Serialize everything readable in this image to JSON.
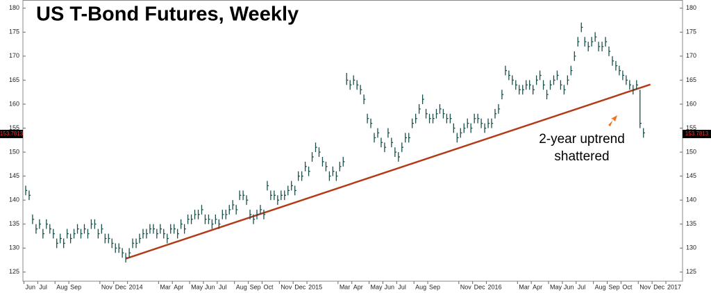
{
  "chart_data": {
    "type": "hlc",
    "title": "US T-Bond Futures, Weekly",
    "categories": [
      "Jun",
      null,
      null,
      null,
      "Jul",
      null,
      null,
      null,
      null,
      "Aug",
      null,
      null,
      null,
      "Sep",
      null,
      null,
      null,
      null,
      null,
      null,
      null,
      null,
      "Nov",
      null,
      null,
      null,
      "Dec",
      null,
      null,
      null,
      "2014",
      null,
      null,
      null,
      null,
      null,
      null,
      null,
      null,
      "Mar",
      null,
      null,
      null,
      "Apr",
      null,
      null,
      null,
      null,
      "May",
      null,
      null,
      null,
      "Jun",
      null,
      null,
      null,
      "Jul",
      null,
      null,
      null,
      null,
      "Aug",
      null,
      null,
      null,
      "Sep",
      null,
      null,
      null,
      "Oct",
      null,
      null,
      null,
      null,
      "Nov",
      null,
      null,
      null,
      "Dec",
      null,
      null,
      null,
      "2015",
      null,
      null,
      null,
      null,
      null,
      null,
      null,
      null,
      "Mar",
      null,
      null,
      null,
      "Apr",
      null,
      null,
      null,
      null,
      "May",
      null,
      null,
      null,
      "Jun",
      null,
      null,
      null,
      "Jul",
      null,
      null,
      null,
      null,
      "Aug",
      null,
      null,
      null,
      "Sep",
      null,
      null,
      null,
      null,
      null,
      null,
      null,
      null,
      "Nov",
      null,
      null,
      null,
      "Dec",
      null,
      null,
      null,
      "2016",
      null,
      null,
      null,
      null,
      null,
      null,
      null,
      null,
      "Mar",
      null,
      null,
      null,
      "Apr",
      null,
      null,
      null,
      null,
      "May",
      null,
      null,
      null,
      "Jun",
      null,
      null,
      null,
      "Jul",
      null,
      null,
      null,
      null,
      "Aug",
      null,
      null,
      null,
      "Sep",
      null,
      null,
      null,
      "Oct",
      null,
      null,
      null,
      null,
      "Nov",
      null,
      null,
      null,
      "Dec",
      null,
      null,
      null,
      "2017"
    ],
    "high": [
      143,
      142,
      137,
      135,
      136,
      134,
      136,
      135,
      134,
      132,
      133,
      132,
      134,
      133,
      134,
      135,
      134,
      135,
      134,
      136,
      136,
      134,
      135,
      133,
      133,
      132,
      131,
      131,
      130,
      129,
      130,
      132,
      132,
      133,
      134,
      134,
      135,
      135,
      134,
      135,
      134,
      133,
      135,
      135,
      134,
      136,
      135,
      137,
      137,
      138,
      138,
      139,
      137,
      137,
      136,
      137,
      136,
      138,
      138,
      139,
      140,
      139,
      142,
      142,
      141,
      138,
      137,
      138,
      139,
      138,
      144,
      142,
      142,
      141,
      142,
      142,
      143,
      144,
      143,
      146,
      146,
      148,
      147,
      150,
      152,
      151,
      149,
      148,
      146,
      147,
      146,
      148,
      149,
      166.5,
      165,
      166,
      165,
      164,
      162,
      158,
      157,
      154,
      155,
      153,
      152,
      155,
      153,
      151,
      150,
      152,
      154,
      154,
      157,
      158,
      160,
      162,
      159,
      158,
      158,
      159,
      160,
      159,
      158,
      158,
      156,
      154,
      155,
      156,
      157,
      156,
      158,
      158,
      157,
      156,
      157,
      157,
      159,
      160,
      163,
      168,
      167,
      166,
      165,
      164,
      164,
      165,
      165,
      164,
      166,
      167,
      165,
      163,
      165,
      166,
      167,
      165,
      164,
      166,
      168,
      171,
      174,
      177,
      174,
      173,
      174,
      175,
      173,
      173,
      174,
      172,
      170,
      169,
      168,
      167,
      166,
      165,
      164,
      165,
      163,
      155,
      null,
      null,
      null,
      null,
      null,
      null,
      null
    ],
    "low": [
      141,
      140,
      135,
      133,
      134,
      132,
      134,
      133,
      132,
      130,
      131,
      130,
      132,
      131,
      132,
      133,
      132,
      133,
      132,
      134,
      134,
      132,
      133,
      131,
      131,
      130,
      129,
      129,
      128,
      127,
      128,
      130,
      130,
      131,
      132,
      132,
      133,
      133,
      132,
      133,
      132,
      131,
      133,
      133,
      132,
      134,
      133,
      135,
      135,
      136,
      136,
      137,
      135,
      135,
      134,
      135,
      134,
      136,
      136,
      137,
      138,
      137,
      140,
      140,
      139,
      136,
      135,
      136,
      137,
      136,
      142,
      140,
      140,
      139,
      140,
      140,
      141,
      142,
      141,
      144,
      144,
      146,
      145,
      148,
      150,
      149,
      147,
      146,
      144,
      145,
      144,
      146,
      147,
      164,
      163,
      164,
      163,
      162,
      160,
      156,
      155,
      152,
      153,
      151,
      150,
      153,
      151,
      149,
      148,
      150,
      152,
      152,
      155,
      156,
      158,
      160,
      157,
      156,
      156,
      157,
      158,
      157,
      156,
      156,
      154,
      152,
      153,
      154,
      155,
      154,
      156,
      156,
      155,
      154,
      155,
      155,
      157,
      158,
      161,
      166,
      165,
      164,
      163,
      162,
      162,
      163,
      163,
      162,
      164,
      165,
      163,
      161,
      163,
      164,
      165,
      163,
      162,
      164,
      166,
      169,
      172,
      175,
      172,
      171,
      172,
      173,
      171,
      171,
      172,
      170,
      168,
      167,
      166,
      165,
      164,
      163,
      162,
      163,
      155,
      153,
      null,
      null,
      null,
      null,
      null,
      null,
      null
    ],
    "close": [
      142,
      141,
      136,
      134,
      135,
      133,
      135,
      134,
      133,
      131,
      132,
      131,
      133,
      132,
      133,
      134,
      133,
      134,
      133,
      135,
      135,
      133,
      134,
      132,
      132,
      131,
      130,
      130,
      129,
      128,
      129,
      131,
      131,
      132,
      133,
      133,
      134,
      134,
      133,
      134,
      133,
      132,
      134,
      134,
      133,
      135,
      134,
      136,
      136,
      137,
      137,
      138,
      136,
      136,
      135,
      136,
      135,
      137,
      137,
      138,
      139,
      138,
      141,
      141,
      140,
      137,
      136,
      137,
      138,
      137,
      143,
      141,
      141,
      140,
      141,
      141,
      142,
      143,
      142,
      145,
      145,
      147,
      146,
      149,
      151,
      150,
      148,
      147,
      145,
      146,
      145,
      147,
      148,
      165,
      164,
      165,
      164,
      163,
      161,
      157,
      156,
      153,
      154,
      152,
      151,
      154,
      152,
      150,
      149,
      151,
      153,
      153,
      156,
      157,
      159,
      161,
      158,
      157,
      157,
      158,
      159,
      158,
      157,
      157,
      155,
      153,
      154,
      155,
      156,
      155,
      157,
      157,
      156,
      155,
      156,
      156,
      158,
      159,
      162,
      167,
      166,
      165,
      164,
      163,
      163,
      164,
      164,
      163,
      165,
      166,
      164,
      162,
      164,
      165,
      166,
      164,
      163,
      165,
      167,
      170,
      173,
      176,
      173,
      172,
      173,
      174,
      172,
      172,
      173,
      171,
      169,
      168,
      167,
      166,
      165,
      164,
      163,
      164,
      156,
      154,
      null,
      null,
      null,
      null,
      null,
      null,
      null
    ],
    "color": "#174f4b",
    "ylim": [
      123.1,
      181.7
    ],
    "yticks": [
      125,
      130,
      135,
      140,
      145,
      150,
      155,
      160,
      165,
      170,
      175,
      180
    ],
    "last_price": {
      "value": 153.7813,
      "label": "153.7813"
    },
    "trendline": {
      "x": [
        29,
        181
      ],
      "values": [
        127.8,
        164.1
      ],
      "color": "#b23c17"
    },
    "annotation": {
      "lines": [
        "2-year uptrend",
        "shattered"
      ],
      "arrow_color": "#f07020"
    }
  }
}
